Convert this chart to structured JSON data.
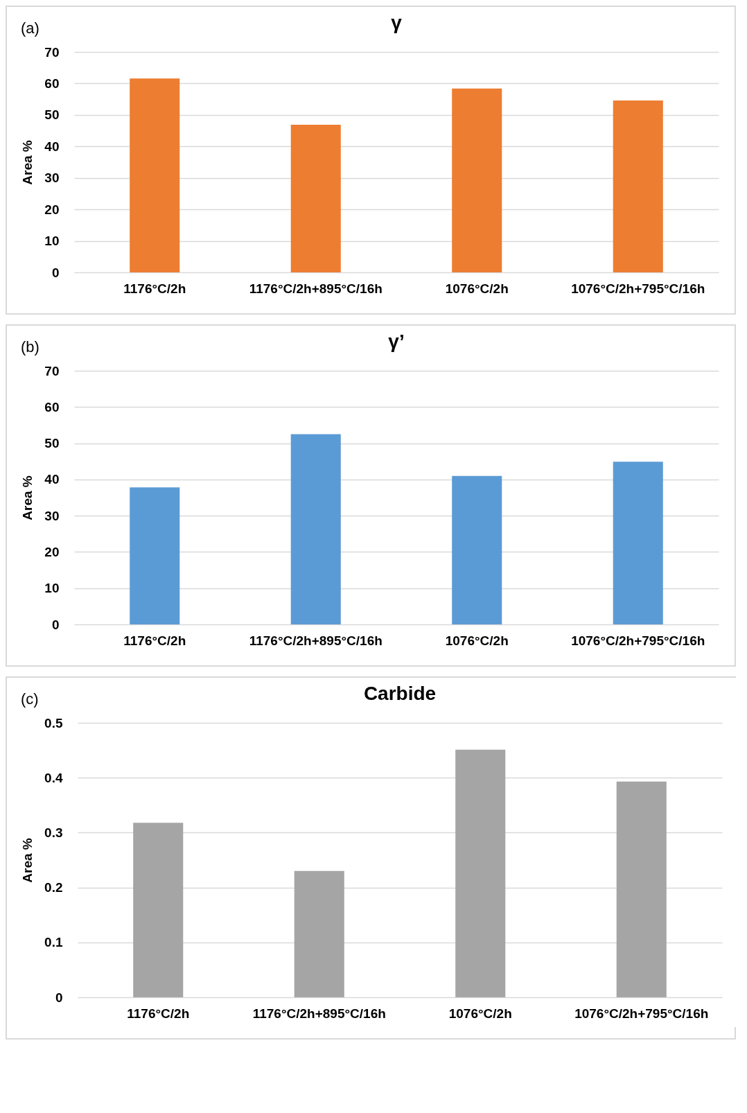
{
  "chart_data": [
    {
      "type": "bar",
      "title": "γ",
      "ylabel": "Area %",
      "annotations": [
        "(a)"
      ],
      "categories": [
        "1176°C/2h",
        "1176°C/2h+895°C/16h",
        "1076°C/2h",
        "1076°C/2h+795°C/16h"
      ],
      "values": [
        61.6,
        46.9,
        58.4,
        54.6
      ],
      "color": "#ed7d31",
      "ylim": [
        0,
        70
      ],
      "yticks": [
        0,
        10,
        20,
        30,
        40,
        50,
        60,
        70
      ],
      "grid": "y"
    },
    {
      "type": "bar",
      "title": "γ’",
      "ylabel": "Area %",
      "annotations": [
        "(b)"
      ],
      "categories": [
        "1176°C/2h",
        "1176°C/2h+895°C/16h",
        "1076°C/2h",
        "1076°C/2h+795°C/16h"
      ],
      "values": [
        37.8,
        52.5,
        41.0,
        44.9
      ],
      "color": "#5b9bd5",
      "ylim": [
        0,
        70
      ],
      "yticks": [
        0,
        10,
        20,
        30,
        40,
        50,
        60,
        70
      ],
      "grid": "y"
    },
    {
      "type": "bar",
      "title": "Carbide",
      "ylabel": "Area %",
      "annotations": [
        "(c)"
      ],
      "categories": [
        "1176°C/2h",
        "1176°C/2h+895°C/16h",
        "1076°C/2h",
        "1076°C/2h+795°C/16h"
      ],
      "values": [
        0.318,
        0.23,
        0.451,
        0.393
      ],
      "color": "#a5a5a5",
      "ylim": [
        0,
        0.5
      ],
      "yticks": [
        0,
        {
          "value": 0.1,
          "label": "0.1"
        },
        {
          "value": 0.2,
          "label": "0.2"
        },
        {
          "value": 0.3,
          "label": "0.3"
        },
        {
          "value": 0.4,
          "label": "0.4"
        },
        {
          "value": 0.5,
          "label": "0.5"
        }
      ],
      "grid": "y"
    }
  ]
}
